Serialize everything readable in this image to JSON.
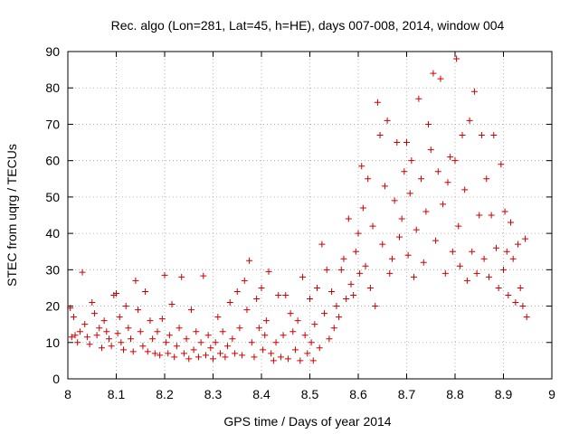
{
  "chart_data": {
    "type": "scatter",
    "title": "Rec. algo (Lon=281, Lat=45, h=HE), days 007-008, 2014, window 004",
    "xlabel": "GPS time / Days of year 2014",
    "ylabel": "STEC from uqrg / TECUs",
    "xlim": [
      8,
      9
    ],
    "ylim": [
      0,
      90
    ],
    "xticks": [
      8,
      8.1,
      8.2,
      8.3,
      8.4,
      8.5,
      8.6,
      8.7,
      8.8,
      8.9,
      9
    ],
    "xtick_labels": [
      "8",
      "8.1",
      "8.2",
      "8.3",
      "8.4",
      "8.5",
      "8.6",
      "8.7",
      "8.8",
      "8.9",
      "9"
    ],
    "yticks": [
      0,
      10,
      20,
      30,
      40,
      50,
      60,
      70,
      80,
      90
    ],
    "ytick_labels": [
      "0",
      "10",
      "20",
      "30",
      "40",
      "50",
      "60",
      "70",
      "80",
      "90"
    ],
    "marker": "+",
    "color": "#cc0000",
    "series": [
      {
        "name": "STEC",
        "points": [
          [
            8.005,
            19.5
          ],
          [
            8.008,
            11.5
          ],
          [
            8.012,
            17
          ],
          [
            8.015,
            12
          ],
          [
            8.02,
            10
          ],
          [
            8.025,
            13
          ],
          [
            8.03,
            29.3
          ],
          [
            8.035,
            15
          ],
          [
            8.04,
            11.5
          ],
          [
            8.045,
            9.5
          ],
          [
            8.05,
            21
          ],
          [
            8.055,
            18
          ],
          [
            8.06,
            12
          ],
          [
            8.065,
            14
          ],
          [
            8.07,
            8.5
          ],
          [
            8.075,
            16
          ],
          [
            8.08,
            13
          ],
          [
            8.085,
            11
          ],
          [
            8.09,
            9
          ],
          [
            8.095,
            23
          ],
          [
            8.1,
            23.5
          ],
          [
            8.103,
            12.5
          ],
          [
            8.107,
            17
          ],
          [
            8.11,
            10
          ],
          [
            8.115,
            8
          ],
          [
            8.12,
            20
          ],
          [
            8.125,
            14
          ],
          [
            8.13,
            11
          ],
          [
            8.135,
            7.5
          ],
          [
            8.14,
            27
          ],
          [
            8.145,
            19
          ],
          [
            8.15,
            13
          ],
          [
            8.155,
            9
          ],
          [
            8.16,
            24
          ],
          [
            8.165,
            7.5
          ],
          [
            8.17,
            16
          ],
          [
            8.175,
            11
          ],
          [
            8.18,
            7
          ],
          [
            8.185,
            13
          ],
          [
            8.19,
            6.5
          ],
          [
            8.195,
            16.5
          ],
          [
            8.2,
            28.5
          ],
          [
            8.203,
            10
          ],
          [
            8.207,
            7
          ],
          [
            8.21,
            12
          ],
          [
            8.215,
            20.5
          ],
          [
            8.22,
            6
          ],
          [
            8.225,
            9
          ],
          [
            8.23,
            14
          ],
          [
            8.235,
            28
          ],
          [
            8.24,
            7
          ],
          [
            8.245,
            11
          ],
          [
            8.25,
            5.5
          ],
          [
            8.255,
            19
          ],
          [
            8.26,
            8
          ],
          [
            8.265,
            13
          ],
          [
            8.27,
            6
          ],
          [
            8.275,
            10
          ],
          [
            8.28,
            28.3
          ],
          [
            8.285,
            6.5
          ],
          [
            8.29,
            12
          ],
          [
            8.295,
            8.5
          ],
          [
            8.3,
            5.5
          ],
          [
            8.305,
            10
          ],
          [
            8.31,
            17
          ],
          [
            8.315,
            7
          ],
          [
            8.32,
            13
          ],
          [
            8.325,
            6
          ],
          [
            8.33,
            9
          ],
          [
            8.335,
            21
          ],
          [
            8.34,
            11
          ],
          [
            8.345,
            7
          ],
          [
            8.35,
            24
          ],
          [
            8.355,
            14
          ],
          [
            8.36,
            6.5
          ],
          [
            8.365,
            27
          ],
          [
            8.37,
            19
          ],
          [
            8.375,
            32.5
          ],
          [
            8.38,
            10
          ],
          [
            8.385,
            6
          ],
          [
            8.39,
            22
          ],
          [
            8.395,
            14
          ],
          [
            8.4,
            25
          ],
          [
            8.403,
            8
          ],
          [
            8.407,
            12
          ],
          [
            8.41,
            16
          ],
          [
            8.415,
            29.5
          ],
          [
            8.42,
            7
          ],
          [
            8.425,
            5
          ],
          [
            8.43,
            10
          ],
          [
            8.435,
            23
          ],
          [
            8.44,
            6
          ],
          [
            8.445,
            12
          ],
          [
            8.45,
            23
          ],
          [
            8.455,
            5.5
          ],
          [
            8.46,
            18
          ],
          [
            8.465,
            13
          ],
          [
            8.47,
            8
          ],
          [
            8.475,
            16
          ],
          [
            8.48,
            5
          ],
          [
            8.485,
            28
          ],
          [
            8.49,
            12
          ],
          [
            8.495,
            7
          ],
          [
            8.5,
            22
          ],
          [
            8.503,
            10
          ],
          [
            8.507,
            5
          ],
          [
            8.51,
            15
          ],
          [
            8.515,
            25
          ],
          [
            8.52,
            8.5
          ],
          [
            8.525,
            37
          ],
          [
            8.53,
            18
          ],
          [
            8.535,
            30
          ],
          [
            8.54,
            11
          ],
          [
            8.545,
            24
          ],
          [
            8.55,
            14
          ],
          [
            8.555,
            20
          ],
          [
            8.56,
            17
          ],
          [
            8.565,
            30
          ],
          [
            8.57,
            33
          ],
          [
            8.575,
            22
          ],
          [
            8.58,
            44
          ],
          [
            8.585,
            26
          ],
          [
            8.59,
            23
          ],
          [
            8.595,
            35
          ],
          [
            8.6,
            40
          ],
          [
            8.603,
            29
          ],
          [
            8.607,
            58.5
          ],
          [
            8.61,
            47
          ],
          [
            8.615,
            31
          ],
          [
            8.62,
            55
          ],
          [
            8.625,
            25
          ],
          [
            8.63,
            42
          ],
          [
            8.635,
            20
          ],
          [
            8.64,
            76
          ],
          [
            8.645,
            67
          ],
          [
            8.65,
            37
          ],
          [
            8.655,
            53
          ],
          [
            8.66,
            71
          ],
          [
            8.665,
            29
          ],
          [
            8.67,
            33
          ],
          [
            8.675,
            49
          ],
          [
            8.68,
            65
          ],
          [
            8.685,
            39
          ],
          [
            8.69,
            44
          ],
          [
            8.695,
            57
          ],
          [
            8.7,
            65
          ],
          [
            8.703,
            34
          ],
          [
            8.707,
            51
          ],
          [
            8.71,
            60
          ],
          [
            8.715,
            28
          ],
          [
            8.72,
            41
          ],
          [
            8.725,
            77
          ],
          [
            8.73,
            55
          ],
          [
            8.735,
            32
          ],
          [
            8.74,
            46
          ],
          [
            8.745,
            70
          ],
          [
            8.75,
            63
          ],
          [
            8.755,
            84
          ],
          [
            8.76,
            38
          ],
          [
            8.765,
            57
          ],
          [
            8.77,
            82.5
          ],
          [
            8.775,
            48
          ],
          [
            8.78,
            29
          ],
          [
            8.785,
            54
          ],
          [
            8.79,
            61
          ],
          [
            8.795,
            35
          ],
          [
            8.8,
            60
          ],
          [
            8.803,
            88
          ],
          [
            8.807,
            42
          ],
          [
            8.81,
            31
          ],
          [
            8.815,
            67
          ],
          [
            8.82,
            52
          ],
          [
            8.825,
            27
          ],
          [
            8.83,
            71
          ],
          [
            8.835,
            35
          ],
          [
            8.84,
            79
          ],
          [
            8.845,
            29
          ],
          [
            8.85,
            45
          ],
          [
            8.855,
            67
          ],
          [
            8.86,
            33
          ],
          [
            8.865,
            55
          ],
          [
            8.87,
            28
          ],
          [
            8.875,
            45
          ],
          [
            8.88,
            67
          ],
          [
            8.885,
            36
          ],
          [
            8.89,
            25
          ],
          [
            8.895,
            59
          ],
          [
            8.9,
            30
          ],
          [
            8.903,
            46
          ],
          [
            8.907,
            35
          ],
          [
            8.91,
            23
          ],
          [
            8.915,
            43
          ],
          [
            8.92,
            33
          ],
          [
            8.925,
            21
          ],
          [
            8.93,
            37
          ],
          [
            8.935,
            25
          ],
          [
            8.94,
            20
          ],
          [
            8.945,
            38.5
          ],
          [
            8.948,
            17
          ]
        ]
      }
    ]
  }
}
